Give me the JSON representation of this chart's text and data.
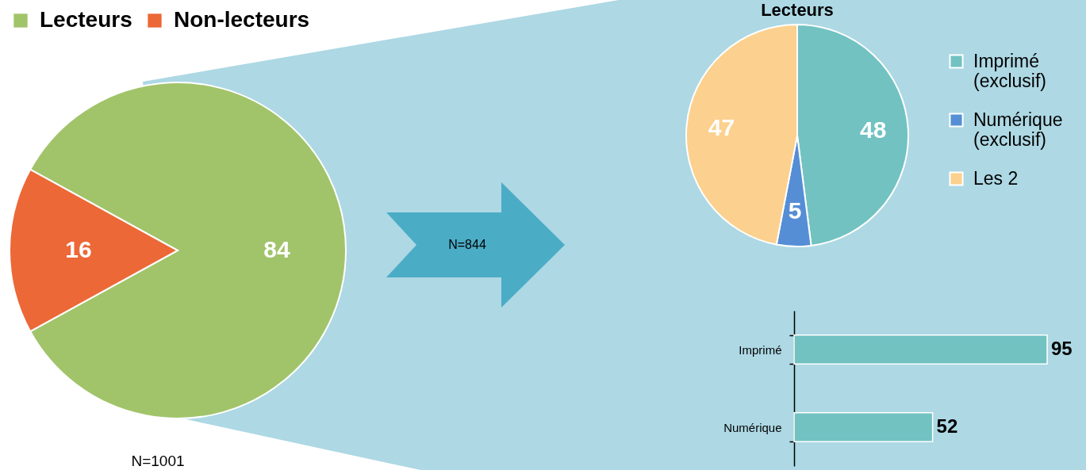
{
  "chart_data": [
    {
      "type": "pie",
      "categories": [
        "Lecteurs",
        "Non-lecteurs"
      ],
      "values": [
        84,
        16
      ],
      "colors": [
        "#a1c46a",
        "#ec6837"
      ],
      "legend": "top left",
      "data_labels": true,
      "annotations": [
        "N=1001"
      ]
    },
    {
      "type": "pie",
      "title": "Lecteurs",
      "categories": [
        "Imprimé (exclusif)",
        "Numérique (exclusif)",
        "Les 2"
      ],
      "values": [
        48,
        5,
        47
      ],
      "colors": [
        "#72c2c2",
        "#558ed5",
        "#fcd08e"
      ],
      "legend": "right",
      "data_labels": true,
      "annotations": [
        "N=844"
      ]
    },
    {
      "type": "bar",
      "orientation": "horizontal",
      "categories": [
        "Imprimé",
        "Numérique"
      ],
      "values": [
        95,
        52
      ],
      "color": "#72c2c2",
      "data_labels": true
    }
  ]
}
